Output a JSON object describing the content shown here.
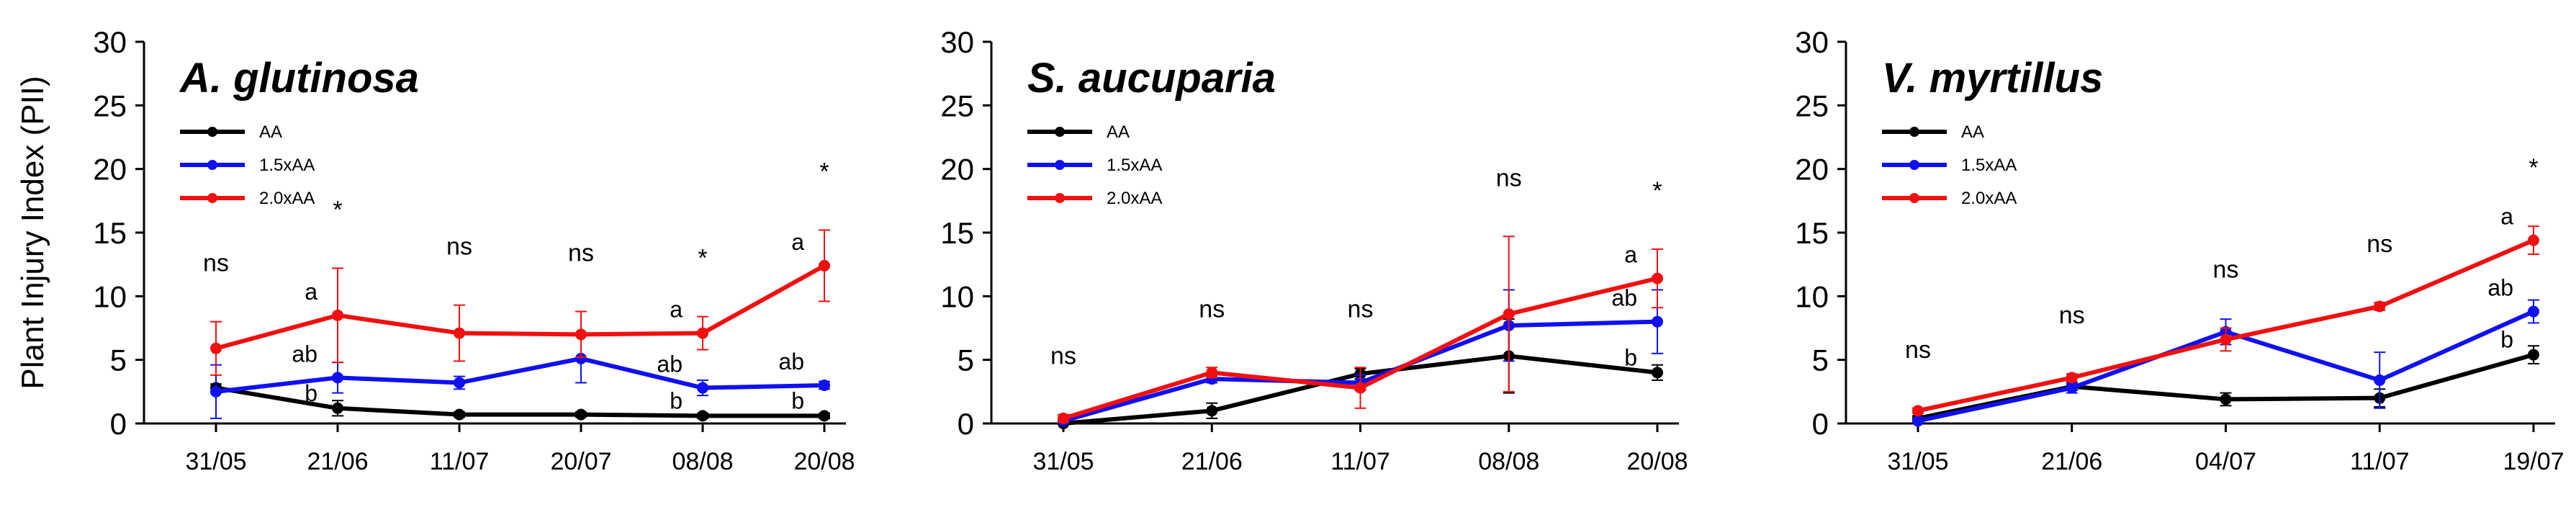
{
  "y_axis_label": "Plant Injury Index (PII)",
  "colors": {
    "AA": "#000000",
    "1.5xAA": "#1010f0",
    "2.0xAA": "#f01010"
  },
  "chart_data": [
    {
      "type": "line",
      "title": "A. glutinosa",
      "categories": [
        "31/05",
        "21/06",
        "11/07",
        "20/07",
        "08/08",
        "20/08"
      ],
      "ylim": [
        0,
        30
      ],
      "yticks": [
        0,
        5,
        10,
        15,
        20,
        25,
        30
      ],
      "ylabel": "Plant Injury Index (PII)",
      "legend_position": "top-left",
      "series": [
        {
          "name": "AA",
          "color": "#000000",
          "values": [
            2.8,
            1.2,
            0.7,
            0.7,
            0.6,
            0.6
          ],
          "errors": [
            0.3,
            0.6,
            0.2,
            0.2,
            0.2,
            0.2
          ]
        },
        {
          "name": "1.5xAA",
          "color": "#1010f0",
          "values": [
            2.5,
            3.6,
            3.2,
            5.1,
            2.8,
            3.0
          ],
          "errors": [
            2.1,
            1.2,
            0.5,
            1.9,
            0.6,
            0.3
          ]
        },
        {
          "name": "2.0xAA",
          "color": "#f01010",
          "values": [
            5.9,
            8.5,
            7.1,
            7.0,
            7.1,
            12.4
          ],
          "errors": [
            2.1,
            3.7,
            2.2,
            1.8,
            1.3,
            2.8
          ]
        }
      ],
      "significance": [
        "ns",
        "*",
        "ns",
        "ns",
        "*",
        "*"
      ],
      "letters": [
        {
          "index": 1,
          "series": "2.0xAA",
          "text": "a"
        },
        {
          "index": 1,
          "series": "1.5xAA",
          "text": "ab"
        },
        {
          "index": 1,
          "series": "AA",
          "text": "b"
        },
        {
          "index": 4,
          "series": "2.0xAA",
          "text": "a"
        },
        {
          "index": 4,
          "series": "1.5xAA",
          "text": "ab"
        },
        {
          "index": 4,
          "series": "AA",
          "text": "b"
        },
        {
          "index": 5,
          "series": "2.0xAA",
          "text": "a"
        },
        {
          "index": 5,
          "series": "1.5xAA",
          "text": "ab"
        },
        {
          "index": 5,
          "series": "AA",
          "text": "b"
        }
      ]
    },
    {
      "type": "line",
      "title": "S. aucuparia",
      "categories": [
        "31/05",
        "21/06",
        "11/07",
        "08/08",
        "20/08"
      ],
      "ylim": [
        0,
        30
      ],
      "yticks": [
        0,
        5,
        10,
        15,
        20,
        25,
        30
      ],
      "legend_position": "top-left",
      "series": [
        {
          "name": "AA",
          "color": "#000000",
          "values": [
            0.0,
            1.0,
            3.9,
            5.3,
            4.0
          ],
          "errors": [
            0.1,
            0.6,
            0.4,
            2.9,
            0.6
          ]
        },
        {
          "name": "1.5xAA",
          "color": "#1010f0",
          "values": [
            0.2,
            3.5,
            3.2,
            7.7,
            8.0
          ],
          "errors": [
            0.1,
            0.3,
            0.6,
            2.8,
            2.5
          ]
        },
        {
          "name": "2.0xAA",
          "color": "#f01010",
          "values": [
            0.4,
            4.0,
            2.8,
            8.6,
            11.4
          ],
          "errors": [
            0.3,
            0.4,
            1.6,
            6.1,
            2.3
          ]
        }
      ],
      "significance": [
        "ns",
        "ns",
        "ns",
        "ns",
        "*"
      ],
      "letters": [
        {
          "index": 4,
          "series": "2.0xAA",
          "text": "a"
        },
        {
          "index": 4,
          "series": "1.5xAA",
          "text": "ab"
        },
        {
          "index": 4,
          "series": "AA",
          "text": "b"
        }
      ]
    },
    {
      "type": "line",
      "title": "V. myrtillus",
      "categories": [
        "31/05",
        "21/06",
        "04/07",
        "11/07",
        "19/07"
      ],
      "ylim": [
        0,
        30
      ],
      "yticks": [
        0,
        5,
        10,
        15,
        20,
        25,
        30
      ],
      "legend_position": "top-left",
      "series": [
        {
          "name": "AA",
          "color": "#000000",
          "values": [
            0.4,
            2.9,
            1.9,
            2.0,
            5.4
          ],
          "errors": [
            0.2,
            0.3,
            0.5,
            0.7,
            0.7
          ]
        },
        {
          "name": "1.5xAA",
          "color": "#1010f0",
          "values": [
            0.2,
            2.8,
            7.2,
            3.4,
            8.8
          ],
          "errors": [
            0.1,
            0.4,
            1.0,
            2.2,
            0.9
          ]
        },
        {
          "name": "2.0xAA",
          "color": "#f01010",
          "values": [
            1.0,
            3.6,
            6.6,
            9.2,
            14.4
          ],
          "errors": [
            0.2,
            0.3,
            0.9,
            0.3,
            1.1
          ]
        }
      ],
      "significance": [
        "ns",
        "ns",
        "ns",
        "ns",
        "*"
      ],
      "letters": [
        {
          "index": 4,
          "series": "2.0xAA",
          "text": "a"
        },
        {
          "index": 4,
          "series": "1.5xAA",
          "text": "ab"
        },
        {
          "index": 4,
          "series": "AA",
          "text": "b"
        }
      ]
    }
  ]
}
